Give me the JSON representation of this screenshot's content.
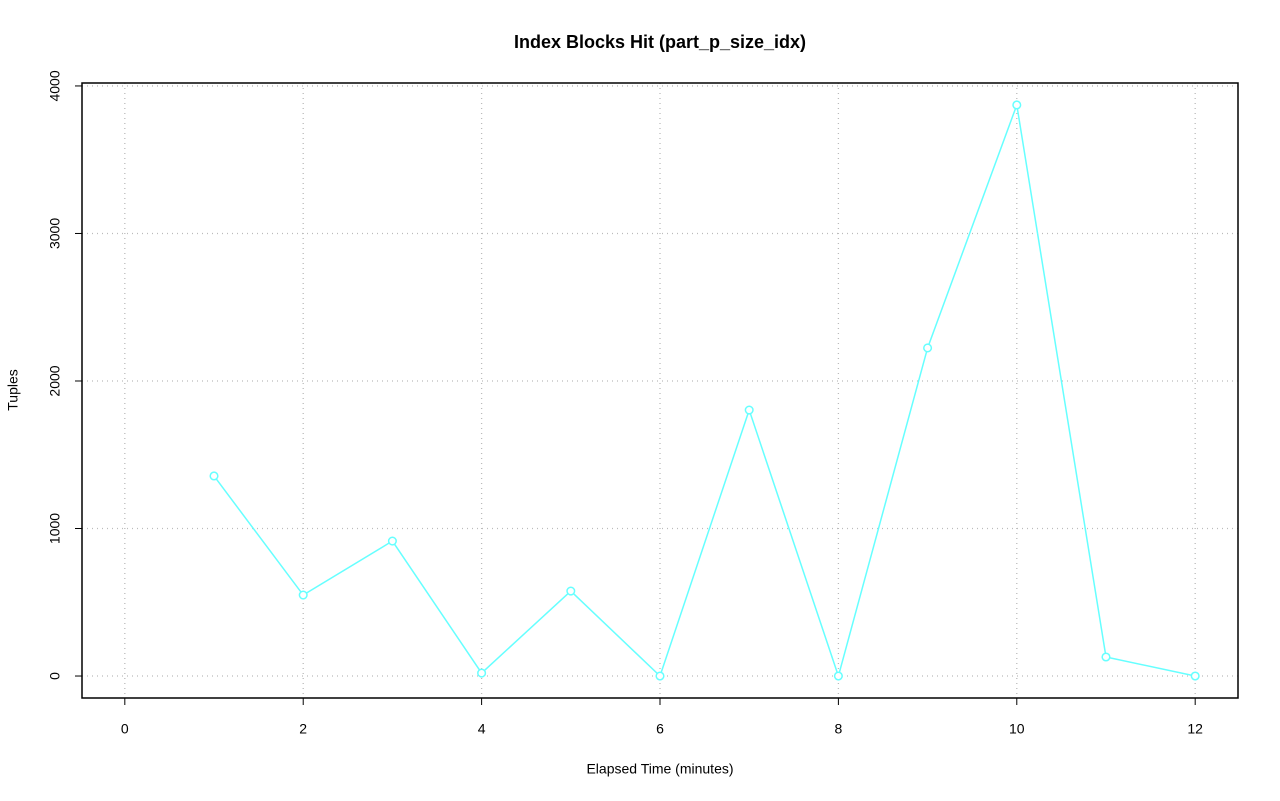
{
  "chart_data": {
    "type": "line",
    "title": "Index Blocks Hit (part_p_size_idx)",
    "x_label": "Elapsed Time (minutes)",
    "y_label": "Tuples",
    "x": [
      1,
      2,
      3,
      4,
      5,
      6,
      7,
      8,
      9,
      10,
      11,
      12
    ],
    "series": [
      {
        "name": "part_p_size_idx",
        "color": "#66ffff",
        "values": [
          1356,
          549,
          915,
          20,
          576,
          0,
          1803,
          0,
          2224,
          3871,
          129,
          0
        ]
      }
    ],
    "xlim": [
      -0.48,
      12.48
    ],
    "ylim": [
      -149,
      4020
    ],
    "xticks": [
      0,
      2,
      4,
      6,
      8,
      10,
      12
    ],
    "yticks": [
      0,
      1000,
      2000,
      3000,
      4000
    ],
    "grid": true
  }
}
